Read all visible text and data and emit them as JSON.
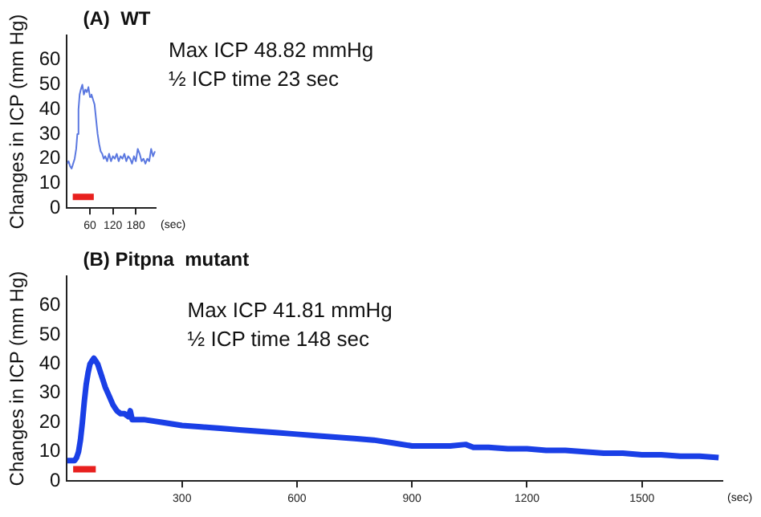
{
  "chart_data": [
    {
      "type": "line",
      "title": "(A)  WT",
      "ylabel": "Changes in ICP (mm Hg)",
      "xlabel": "(sec)",
      "annotations": [
        "Max ICP 48.82 mmHg",
        "½ ICP time 23 sec"
      ],
      "series": [
        {
          "color": "#5b78e0",
          "x": [
            0,
            4,
            8,
            12,
            16,
            20,
            24,
            27,
            30,
            33,
            36,
            40,
            44,
            48,
            52,
            56,
            60,
            64,
            68,
            72,
            76,
            80,
            84,
            88,
            92,
            96,
            100,
            105,
            110,
            115,
            120,
            125,
            130,
            135,
            140,
            145,
            150,
            155,
            160,
            165,
            170,
            175,
            180,
            185,
            190,
            195,
            200,
            205,
            210,
            215,
            220,
            225,
            230
          ],
          "values": [
            18,
            19,
            17,
            16,
            18,
            20,
            24,
            30,
            40,
            46,
            48,
            50,
            46,
            48,
            47,
            49,
            45,
            46,
            44,
            42,
            36,
            30,
            26,
            23,
            22,
            20,
            21,
            19,
            22,
            19,
            21,
            20,
            22,
            19,
            21,
            20,
            22,
            19,
            21,
            20,
            18,
            21,
            19,
            24,
            22,
            19,
            20,
            18,
            20,
            19,
            24,
            21,
            23
          ]
        },
        {
          "color": "#e8201e",
          "x": [
            15,
            70
          ],
          "values": [
            4.5,
            4.5
          ]
        }
      ],
      "xlim": [
        0,
        232
      ],
      "xticks": [
        60,
        120,
        180
      ],
      "ylim": [
        0,
        70
      ],
      "yticks": [
        0,
        10,
        20,
        30,
        40,
        50,
        60
      ],
      "grid": false,
      "legend": false
    },
    {
      "type": "line",
      "title": "(B) Pitpna  mutant",
      "ylabel": "Changes in ICP (mm Hg)",
      "xlabel": "(sec)",
      "annotations": [
        "Max ICP 41.81 mmHg",
        "½ ICP time 148 sec"
      ],
      "series": [
        {
          "color": "#1a3fe6",
          "x": [
            0,
            10,
            20,
            25,
            30,
            35,
            40,
            45,
            50,
            55,
            60,
            65,
            70,
            75,
            80,
            85,
            90,
            95,
            100,
            110,
            120,
            130,
            140,
            150,
            160,
            165,
            170,
            180,
            200,
            250,
            300,
            350,
            400,
            450,
            500,
            550,
            600,
            650,
            700,
            750,
            800,
            850,
            900,
            950,
            1000,
            1040,
            1060,
            1100,
            1150,
            1200,
            1250,
            1300,
            1350,
            1400,
            1450,
            1500,
            1550,
            1600,
            1650,
            1700
          ],
          "values": [
            7,
            7,
            7,
            8,
            10,
            14,
            20,
            27,
            33,
            37,
            40,
            41,
            42,
            41,
            40,
            38,
            36,
            34,
            32,
            29,
            26,
            24,
            23,
            23,
            22,
            24,
            21,
            21,
            21,
            20,
            19,
            18.5,
            18,
            17.5,
            17,
            16.5,
            16,
            15.5,
            15,
            14.5,
            14,
            13,
            12,
            12,
            12,
            12.5,
            11.5,
            11.5,
            11,
            11,
            10.5,
            10.5,
            10,
            9.5,
            9.5,
            9,
            9,
            8.5,
            8.5,
            8
          ]
        },
        {
          "color": "#e8201e",
          "x": [
            16,
            75
          ],
          "values": [
            4,
            4
          ]
        }
      ],
      "xlim": [
        0,
        1710
      ],
      "xticks": [
        300,
        600,
        900,
        1200,
        1500
      ],
      "ylim": [
        0,
        70
      ],
      "yticks": [
        0,
        10,
        20,
        30,
        40,
        50,
        60
      ],
      "grid": false,
      "legend": false
    }
  ]
}
